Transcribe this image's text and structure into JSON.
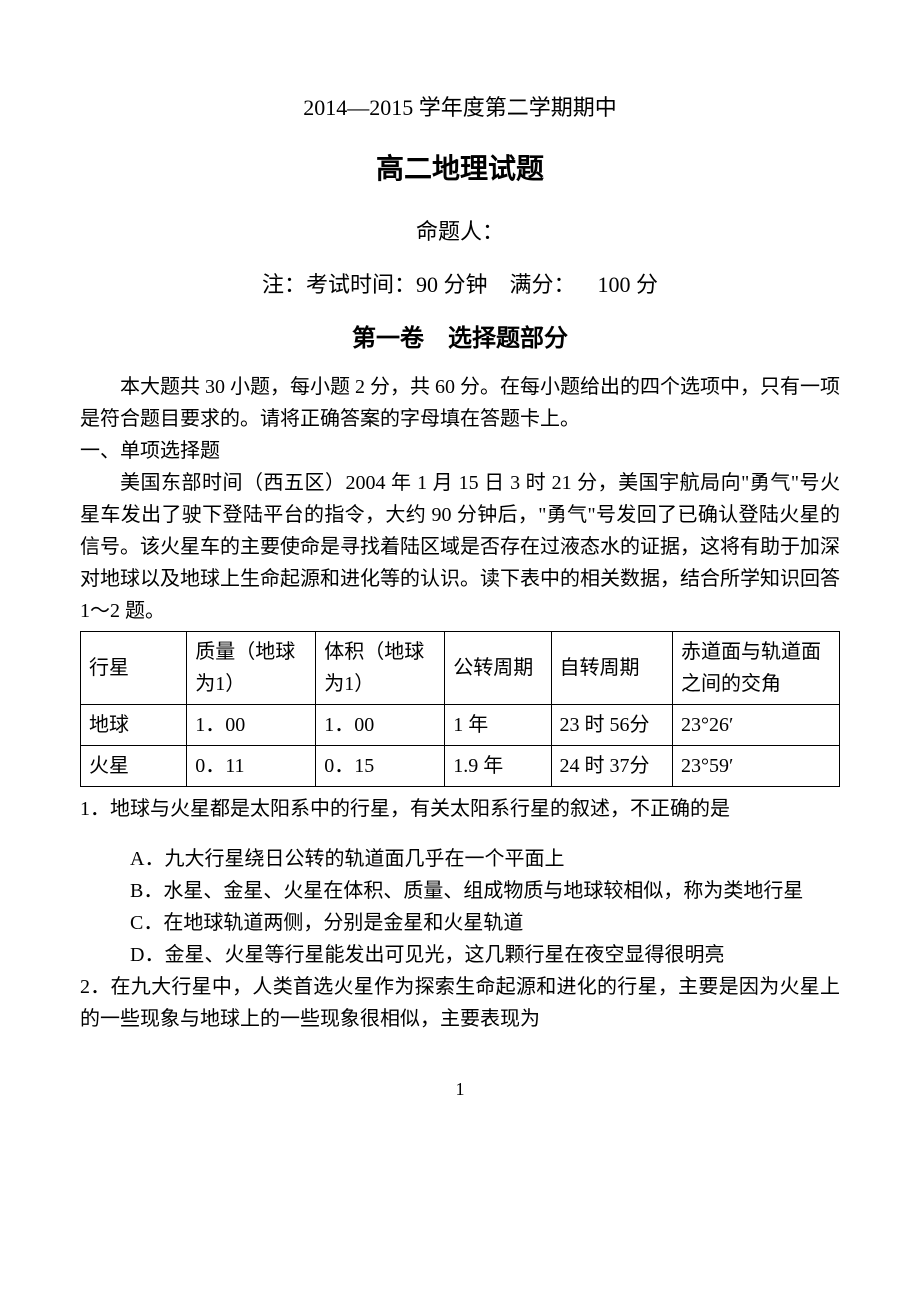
{
  "title_line1": "2014—2015 学年度第二学期期中",
  "title_line2": "高二地理试题",
  "author_line": "命题人：",
  "note_line": "注：考试时间：90 分钟 满分： 100 分",
  "section_header": "第一卷 选择题部分",
  "instruction": "本大题共 30 小题，每小题 2 分，共 60 分。在每小题给出的四个选项中，只有一项是符合题目要求的。请将正确答案的字母填在答题卡上。",
  "sub_section": "一、单项选择题",
  "passage": "美国东部时间（西五区）2004 年 1 月 15 日 3 时 21 分，美国宇航局向\"勇气\"号火星车发出了驶下登陆平台的指令，大约 90 分钟后，\"勇气\"号发回了已确认登陆火星的信号。该火星车的主要使命是寻找着陆区域是否存在过液态水的证据，这将有助于加深对地球以及地球上生命起源和进化等的认识。读下表中的相关数据，结合所学知识回答 1～2 题。",
  "table": {
    "columns": [
      "行星",
      "质量（地球为1）",
      "体积（地球为1）",
      "公转周期",
      "自转周期",
      "赤道面与轨道面之间的交角"
    ],
    "rows": [
      [
        "地球",
        "1．00",
        "1．00",
        "1 年",
        "23 时 56分",
        "23°26′"
      ],
      [
        "火星",
        "0．11",
        "0．15",
        "1.9 年",
        "24 时 37分",
        "23°59′"
      ]
    ],
    "col_widths": [
      "14%",
      "17%",
      "17%",
      "14%",
      "16%",
      "22%"
    ]
  },
  "q1": {
    "text": "1．地球与火星都是太阳系中的行星，有关太阳系行星的叙述，不正确的是",
    "options": [
      "A．九大行星绕日公转的轨道面几乎在一个平面上",
      "B．水星、金星、火星在体积、质量、组成物质与地球较相似，称为类地行星",
      "C．在地球轨道两侧，分别是金星和火星轨道",
      "D．金星、火星等行星能发出可见光，这几颗行星在夜空显得很明亮"
    ]
  },
  "q2": {
    "text": "2．在九大行星中，人类首选火星作为探索生命起源和进化的行星，主要是因为火星上的一些现象与地球上的一些现象很相似，主要表现为"
  },
  "page_number": "1"
}
